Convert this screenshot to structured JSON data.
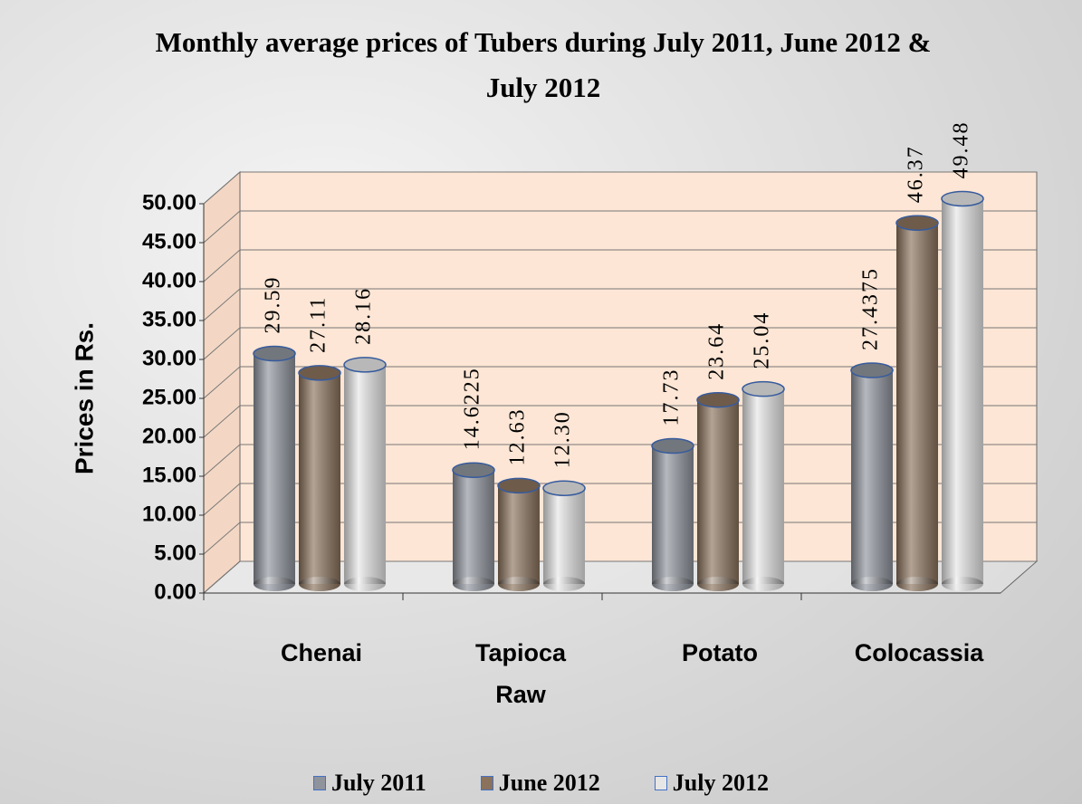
{
  "chart_data": {
    "type": "bar",
    "title": "Monthly average prices of Tubers during July 2011, June 2012 & July 2012",
    "ylabel": "Prices in Rs.",
    "categories": [
      "Chenai",
      "Tapioca Raw",
      "Potato",
      "Colocassia"
    ],
    "series": [
      {
        "name": "July 2011",
        "color": "#8e939c",
        "values": [
          29.59,
          14.6225,
          17.73,
          27.4375
        ],
        "value_labels": [
          "29.59",
          "14.6225",
          "17.73",
          "27.4375"
        ]
      },
      {
        "name": "June 2012",
        "color": "#8a725c",
        "values": [
          27.11,
          12.63,
          23.64,
          46.37
        ],
        "value_labels": [
          "27.11",
          "12.63",
          "23.64",
          "46.37"
        ]
      },
      {
        "name": "July 2012",
        "color": "#e6e6e6",
        "values": [
          28.16,
          12.3,
          25.04,
          49.48
        ],
        "value_labels": [
          "28.16",
          "12.30",
          "25.04",
          "49.48"
        ]
      }
    ],
    "ylim": [
      0,
      50
    ],
    "yticks": [
      {
        "value": 0,
        "label": "0.00"
      },
      {
        "value": 5,
        "label": "5.00"
      },
      {
        "value": 10,
        "label": "10.00"
      },
      {
        "value": 15,
        "label": "15.00"
      },
      {
        "value": 20,
        "label": "20.00"
      },
      {
        "value": 25,
        "label": "25.00"
      },
      {
        "value": 30,
        "label": "30.00"
      },
      {
        "value": 35,
        "label": "35.00"
      },
      {
        "value": 40,
        "label": "40.00"
      },
      {
        "value": 45,
        "label": "45.00"
      },
      {
        "value": 50,
        "label": "50.00"
      }
    ],
    "grid": true,
    "legend": "bottom"
  }
}
